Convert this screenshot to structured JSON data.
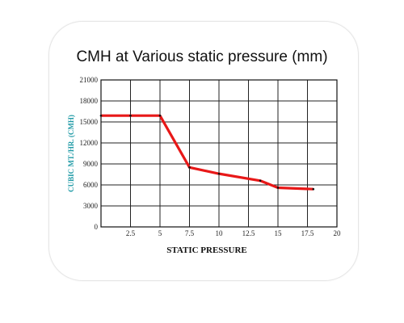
{
  "chart_data": {
    "type": "line",
    "title": "CMH at Various static pressure (mm)",
    "xlabel": "STATIC PRESSURE",
    "ylabel": "CUBIC MT./HR. (CMH)",
    "xlim": [
      0,
      20
    ],
    "ylim": [
      0,
      21000
    ],
    "x_ticks": [
      "2.5",
      "5",
      "7.5",
      "10",
      "12.5",
      "15",
      "17.5",
      "20"
    ],
    "y_ticks": [
      "21000",
      "18000",
      "15000",
      "12000",
      "9000",
      "6000",
      "3000",
      "0"
    ],
    "grid": true,
    "series": [
      {
        "x": [
          0,
          2.5,
          5,
          7.5,
          10,
          13.5,
          15,
          18
        ],
        "y": [
          15900,
          15900,
          15900,
          8500,
          7600,
          6600,
          5600,
          5400
        ],
        "color": "#e81818",
        "marker_color": "#111111"
      }
    ],
    "ylabel_color": "#1f9aa6"
  }
}
